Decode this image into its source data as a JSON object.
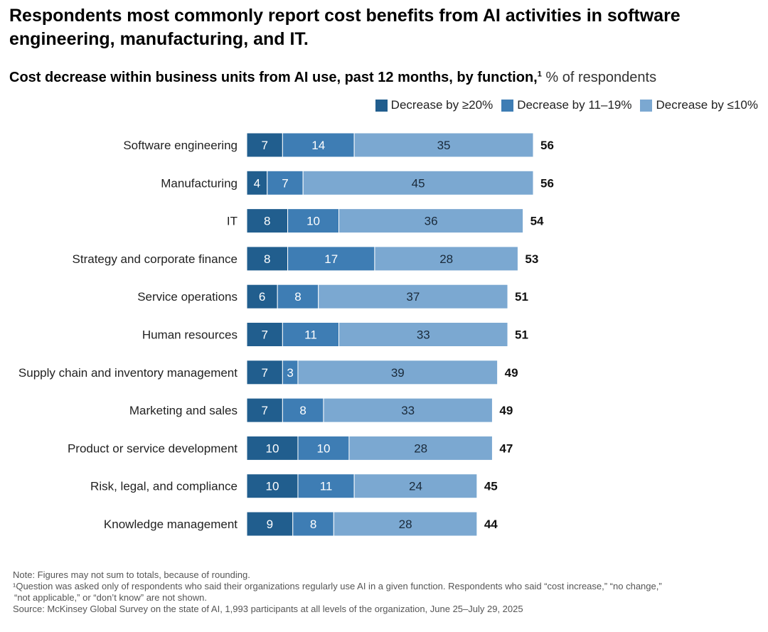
{
  "title": "Respondents most commonly report cost benefits from AI activities in software engineering, manufacturing, and IT.",
  "subtitle": "Cost decrease within business units from AI use, past 12 months, by function,",
  "subtitle_sup": "1",
  "subtitle_unit": " % of respondents",
  "colors": {
    "ge20": "#215e8e",
    "mid": "#3e7db4",
    "le10": "#7ba8d1"
  },
  "chart_data": {
    "type": "bar",
    "orientation": "horizontal",
    "stacked": true,
    "categories": [
      "Software engineering",
      "Manufacturing",
      "IT",
      "Strategy and corporate finance",
      "Service operations",
      "Human resources",
      "Supply chain and inventory management",
      "Marketing and sales",
      "Product or service development",
      "Risk, legal, and compliance",
      "Knowledge management"
    ],
    "series": [
      {
        "name": "Decrease by ≥20%",
        "values": [
          7,
          4,
          8,
          8,
          6,
          7,
          7,
          7,
          10,
          10,
          9
        ]
      },
      {
        "name": "Decrease by 11–19%",
        "values": [
          14,
          7,
          10,
          17,
          8,
          11,
          3,
          8,
          10,
          11,
          8
        ]
      },
      {
        "name": "Decrease by ≤10%",
        "values": [
          35,
          45,
          36,
          28,
          37,
          33,
          39,
          33,
          28,
          24,
          28
        ]
      }
    ],
    "totals": [
      56,
      56,
      54,
      53,
      51,
      51,
      49,
      49,
      47,
      45,
      44
    ],
    "xlim": [
      0,
      56
    ],
    "legend": "top-right",
    "grid": false
  },
  "notes": [
    "Note: Figures may not sum to totals, because of rounding.",
    "¹Question was asked only of respondents who said their organizations regularly use AI in a given function. Respondents who said “cost increase,” “no change,”",
    "“not applicable,” or “don’t know” are not shown.",
    "Source: McKinsey Global Survey on the state of AI, 1,993 participants at all levels of the organization, June 25–July 29, 2025"
  ]
}
